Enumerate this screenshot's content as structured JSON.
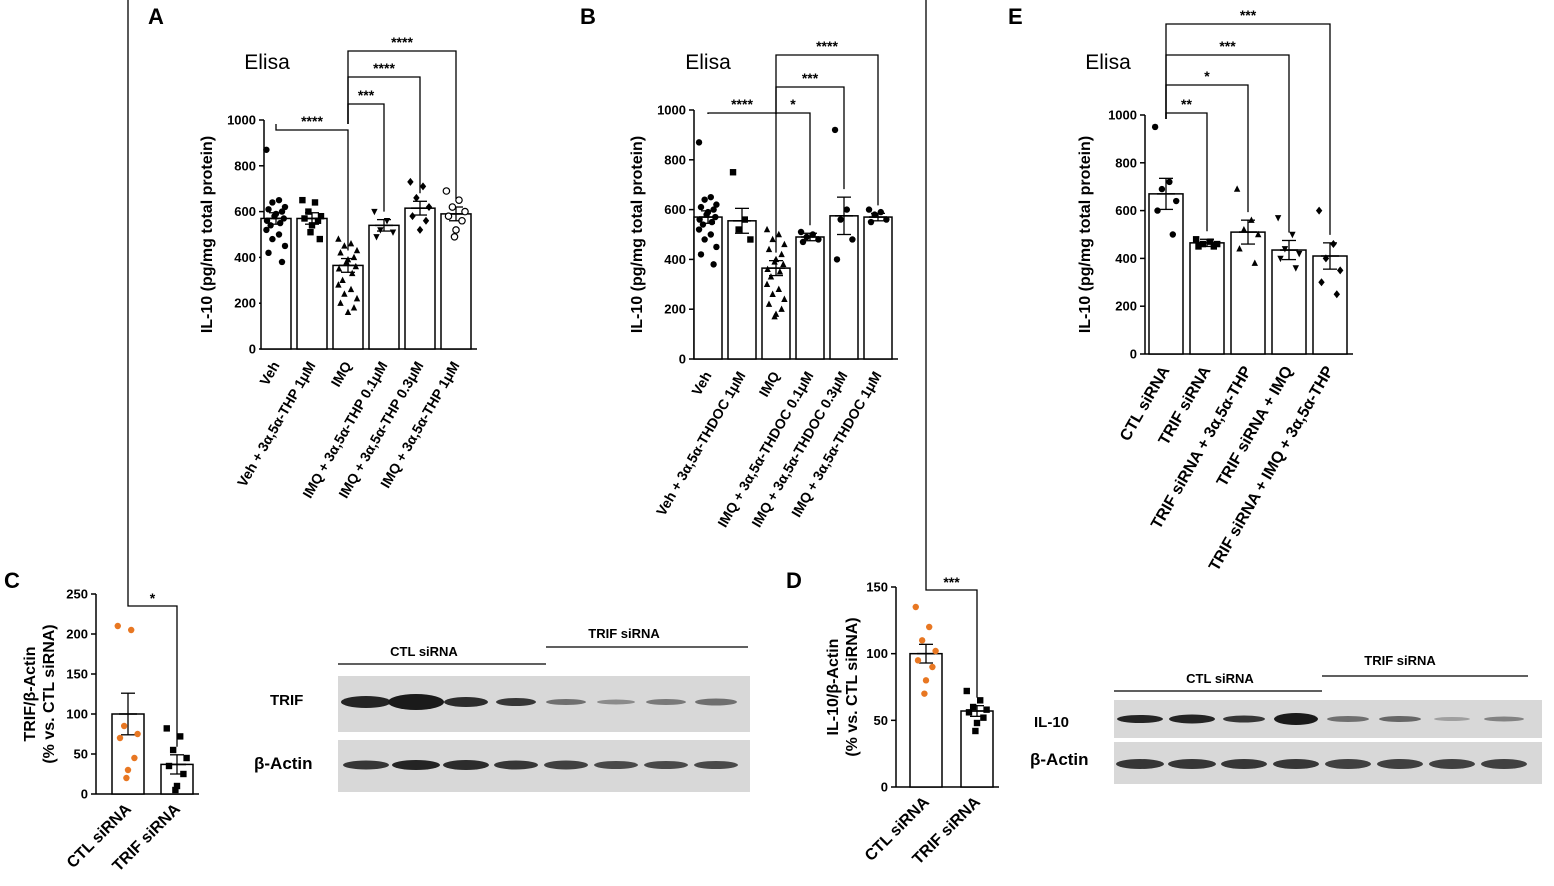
{
  "chart_data": [
    {
      "panel": "A",
      "type": "bar",
      "title": "Elisa",
      "ylabel": "IL-10 (pg/mg total protein)",
      "ylim": [
        0,
        1000
      ],
      "yticks": [
        "0",
        "200",
        "400",
        "600",
        "800",
        "1000"
      ],
      "categories": [
        "Veh",
        "Veh + 3α,5α-THP 1μM",
        "IMQ",
        "IMQ + 3α,5α-THP 0.1μM",
        "IMQ + 3α,5α-THP 0.3μM",
        "IMQ + 3α,5α-THP 1μM"
      ],
      "values": [
        570,
        570,
        365,
        540,
        615,
        590
      ],
      "errors": [
        25,
        25,
        30,
        25,
        30,
        30
      ],
      "markers": [
        "circle",
        "square",
        "triangle",
        "triangle-down",
        "diamond",
        "circle-open"
      ],
      "points": [
        [
          870,
          650,
          640,
          620,
          610,
          600,
          590,
          580,
          570,
          560,
          550,
          540,
          520,
          500,
          480,
          450,
          420,
          380
        ],
        [
          650,
          640,
          600,
          580,
          570,
          560,
          540,
          510,
          480
        ],
        [
          480,
          460,
          450,
          430,
          420,
          400,
          390,
          380,
          360,
          350,
          330,
          300,
          280,
          260,
          240,
          220,
          200,
          180,
          160
        ],
        [
          600,
          560,
          520,
          510,
          490
        ],
        [
          730,
          710,
          660,
          620,
          580,
          560,
          520
        ],
        [
          690,
          650,
          620,
          600,
          580,
          560,
          520,
          490
        ]
      ],
      "significance": [
        {
          "from": 0,
          "to": 2,
          "label": "****"
        },
        {
          "from": 2,
          "to": 3,
          "label": "***"
        },
        {
          "from": 2,
          "to": 4,
          "label": "****"
        },
        {
          "from": 2,
          "to": 5,
          "label": "****"
        }
      ]
    },
    {
      "panel": "B",
      "type": "bar",
      "title": "Elisa",
      "ylabel": "IL-10 (pg/mg total protein)",
      "ylim": [
        0,
        1000
      ],
      "yticks": [
        "0",
        "200",
        "400",
        "600",
        "800",
        "1000"
      ],
      "categories": [
        "Veh",
        "Veh + 3α,5α-THDOC 1μM",
        "IMQ",
        "IMQ + 3α,5α-THDOC 0.1μM",
        "IMQ + 3α,5α-THDOC 0.3μM",
        "IMQ + 3α,5α-THDOC 1μM"
      ],
      "values": [
        570,
        555,
        365,
        490,
        575,
        570
      ],
      "errors": [
        25,
        50,
        30,
        15,
        75,
        15
      ],
      "markers": [
        "circle",
        "square",
        "triangle",
        "circle",
        "circle",
        "circle"
      ],
      "points": [
        [
          870,
          650,
          640,
          620,
          610,
          600,
          590,
          580,
          570,
          560,
          550,
          540,
          520,
          500,
          480,
          450,
          420,
          380
        ],
        [
          750,
          560,
          520,
          480
        ],
        [
          520,
          500,
          480,
          460,
          440,
          420,
          400,
          390,
          380,
          360,
          350,
          330,
          300,
          280,
          260,
          240,
          220,
          200,
          180,
          170
        ],
        [
          510,
          500,
          490,
          480,
          470
        ],
        [
          920,
          600,
          560,
          480,
          400
        ],
        [
          600,
          590,
          580,
          560,
          550
        ]
      ],
      "significance": [
        {
          "from": 0,
          "to": 2,
          "label": "****"
        },
        {
          "from": 2,
          "to": 3,
          "label": "*"
        },
        {
          "from": 2,
          "to": 4,
          "label": "***"
        },
        {
          "from": 2,
          "to": 5,
          "label": "****"
        }
      ]
    },
    {
      "panel": "E",
      "type": "bar",
      "title": "Elisa",
      "ylabel": "IL-10 (pg/mg total protein)",
      "ylim": [
        0,
        1000
      ],
      "yticks": [
        "0",
        "200",
        "400",
        "600",
        "800",
        "1000"
      ],
      "categories": [
        "CTL siRNA",
        "TRIF siRNA",
        "TRIF siRNA + 3α,5α-THP",
        "TRIF siRNA + IMQ",
        "TRIF siRNA + IMQ + 3α,5α-THP"
      ],
      "values": [
        670,
        465,
        510,
        435,
        410
      ],
      "errors": [
        65,
        15,
        50,
        40,
        55
      ],
      "markers": [
        "circle",
        "square",
        "triangle",
        "triangle-down",
        "diamond"
      ],
      "points": [
        [
          950,
          720,
          690,
          640,
          600,
          500
        ],
        [
          480,
          470,
          460,
          460,
          450,
          450
        ],
        [
          690,
          560,
          520,
          500,
          440,
          380
        ],
        [
          570,
          500,
          440,
          420,
          400,
          360
        ],
        [
          600,
          460,
          400,
          350,
          300,
          250
        ]
      ],
      "significance": [
        {
          "from": 0,
          "to": 1,
          "label": "**"
        },
        {
          "from": 0,
          "to": 2,
          "label": "*"
        },
        {
          "from": 0,
          "to": 3,
          "label": "***"
        },
        {
          "from": 0,
          "to": 4,
          "label": "***"
        }
      ]
    },
    {
      "panel": "C",
      "type": "bar",
      "ylabel_lines": [
        "TRIF/β-Actin",
        "(% vs. CTL siRNA)"
      ],
      "ylim": [
        0,
        250
      ],
      "yticks": [
        "0",
        "50",
        "100",
        "150",
        "200",
        "250"
      ],
      "categories": [
        "CTL siRNA",
        "TRIF siRNA"
      ],
      "values": [
        100,
        37
      ],
      "errors": [
        26,
        12
      ],
      "markers": [
        "circle-orange",
        "square"
      ],
      "points": [
        [
          210,
          205,
          85,
          75,
          70,
          45,
          30,
          20
        ],
        [
          82,
          72,
          55,
          45,
          35,
          25,
          10,
          5
        ]
      ],
      "significance": [
        {
          "from": 0,
          "to": 1,
          "label": "*"
        }
      ]
    },
    {
      "panel": "D",
      "type": "bar",
      "ylabel_lines": [
        "IL-10/β-Actin",
        "(% vs. CTL siRNA)"
      ],
      "ylim": [
        0,
        150
      ],
      "yticks": [
        "0",
        "50",
        "100",
        "150"
      ],
      "categories": [
        "CTL siRNA",
        "TRIF siRNA"
      ],
      "values": [
        100,
        57
      ],
      "errors": [
        7,
        4
      ],
      "markers": [
        "circle-orange",
        "square"
      ],
      "points": [
        [
          135,
          120,
          110,
          102,
          95,
          90,
          80,
          70
        ],
        [
          72,
          65,
          60,
          58,
          56,
          52,
          48,
          42
        ]
      ],
      "significance": [
        {
          "from": 0,
          "to": 1,
          "label": "***"
        }
      ]
    }
  ],
  "panel_labels": {
    "A": "A",
    "B": "B",
    "E": "E",
    "C": "C",
    "D": "D"
  },
  "blots": {
    "c": {
      "group1": "CTL siRNA",
      "group2": "TRIF siRNA",
      "row1": "TRIF",
      "row2": "β-Actin"
    },
    "d": {
      "group1": "CTL siRNA",
      "group2": "TRIF siRNA",
      "row1": "IL-10",
      "row2": "β-Actin"
    }
  },
  "colors": {
    "orange_points": "#e87722",
    "ink": "#000000",
    "blot_bg": "#d9d9d9",
    "band": "#1a1a1a"
  }
}
